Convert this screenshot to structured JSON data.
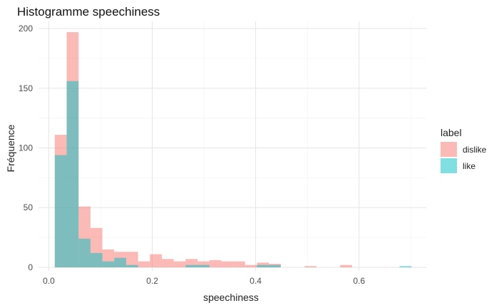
{
  "chart_data": {
    "type": "histogram",
    "title": "Histogramme speechiness",
    "xlabel": "speechiness",
    "ylabel": "Fréquence",
    "xlim": [
      -0.02,
      0.73
    ],
    "ylim": [
      -3,
      206
    ],
    "x_ticks": [
      {
        "value": 0.0,
        "label": "0.0"
      },
      {
        "value": 0.2,
        "label": "0.2"
      },
      {
        "value": 0.4,
        "label": "0.4"
      },
      {
        "value": 0.6,
        "label": "0.6"
      }
    ],
    "y_ticks": [
      {
        "value": 0,
        "label": "0"
      },
      {
        "value": 50,
        "label": "50"
      },
      {
        "value": 100,
        "label": "100"
      },
      {
        "value": 150,
        "label": "150"
      },
      {
        "value": 200,
        "label": "200"
      }
    ],
    "grid": true,
    "legend_position": "right",
    "legend_title": "label",
    "bins": [
      0.0115,
      0.0345,
      0.0575,
      0.0805,
      0.1035,
      0.1265,
      0.1495,
      0.1725,
      0.1955,
      0.2185,
      0.2415,
      0.2645,
      0.2875,
      0.3105,
      0.3335,
      0.3565,
      0.3795,
      0.4025,
      0.4255,
      0.4485,
      0.4715,
      0.4945,
      0.5175,
      0.5405,
      0.5635,
      0.5865,
      0.6095,
      0.6325,
      0.6555,
      0.6785,
      0.7015
    ],
    "series": [
      {
        "name": "dislike",
        "color": "#F8766D",
        "values": [
          111,
          197,
          51,
          33,
          15,
          13,
          13,
          5,
          11,
          7,
          5,
          7,
          5,
          6,
          5,
          5,
          2,
          4,
          3,
          0,
          0,
          1,
          0,
          0,
          2,
          0,
          0,
          0,
          0,
          0
        ]
      },
      {
        "name": "like",
        "color": "#00BFC4",
        "values": [
          94,
          156,
          24,
          12,
          5,
          8,
          2,
          0,
          0,
          0,
          0,
          2,
          2,
          0,
          0,
          0,
          0,
          2,
          2,
          0,
          0,
          0,
          0,
          0,
          0,
          0,
          0,
          0,
          0,
          1
        ]
      }
    ]
  }
}
